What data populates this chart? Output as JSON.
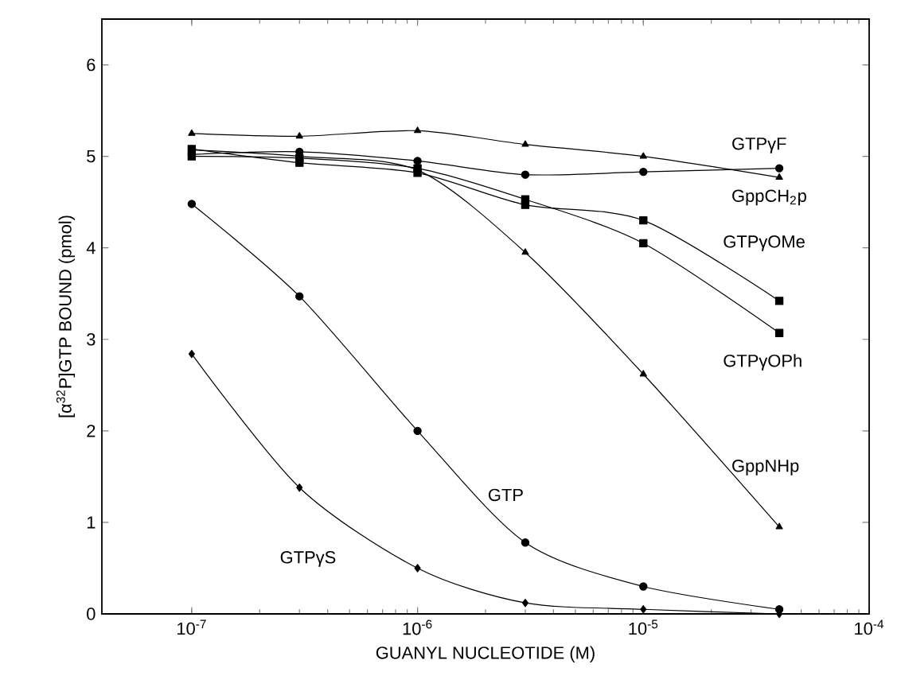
{
  "chart_data": {
    "type": "line",
    "xlabel": "GUANYL NUCLEOTIDE (M)",
    "ylabel": "[α$^{32}$P]GTP BOUND (pmol)",
    "log": "x",
    "xlim": [
      4e-08,
      0.0001
    ],
    "ylim": [
      0,
      6.5
    ],
    "line_style": "solid",
    "xticks": [
      {
        "value": 1e-07,
        "label": "10$^{-7}$"
      },
      {
        "value": 1e-06,
        "label": "10$^{-6}$"
      },
      {
        "value": 1e-05,
        "label": "10$^{-5}$"
      },
      {
        "value": 0.0001,
        "label": "10$^{-4}$"
      }
    ],
    "yticks": [
      0,
      1,
      2,
      3,
      4,
      5,
      6
    ],
    "x": [
      1e-07,
      3e-07,
      1e-06,
      3e-06,
      1e-05,
      4e-05
    ],
    "series": [
      {
        "name": "GTPγF",
        "color": "#000000",
        "marker": "triangle",
        "values": [
          5.25,
          5.22,
          5.28,
          5.13,
          5.0,
          4.77
        ]
      },
      {
        "name": "GppCH$_{2}$p",
        "color": "#000000",
        "marker": "circle",
        "values": [
          5.02,
          5.05,
          4.95,
          4.8,
          4.83,
          4.87
        ]
      },
      {
        "name": "GTPγOMe",
        "color": "#000000",
        "marker": "square",
        "values": [
          5.08,
          4.93,
          4.82,
          4.47,
          4.3,
          3.42
        ]
      },
      {
        "name": "GTPγOPh",
        "color": "#000000",
        "marker": "square",
        "values": [
          5.0,
          4.98,
          4.87,
          4.53,
          4.05,
          3.07
        ]
      },
      {
        "name": "GppNHp",
        "color": "#000000",
        "marker": "triangle",
        "values": [
          5.07,
          5.0,
          4.85,
          3.95,
          2.62,
          0.95
        ]
      },
      {
        "name": "GTP",
        "color": "#000000",
        "marker": "circle",
        "values": [
          4.48,
          3.47,
          2.0,
          0.78,
          0.3,
          0.05
        ]
      },
      {
        "name": "GTPγS",
        "color": "#000000",
        "marker": "diamond",
        "values": [
          2.84,
          1.38,
          0.5,
          0.12,
          0.05,
          0.0
        ]
      }
    ]
  }
}
